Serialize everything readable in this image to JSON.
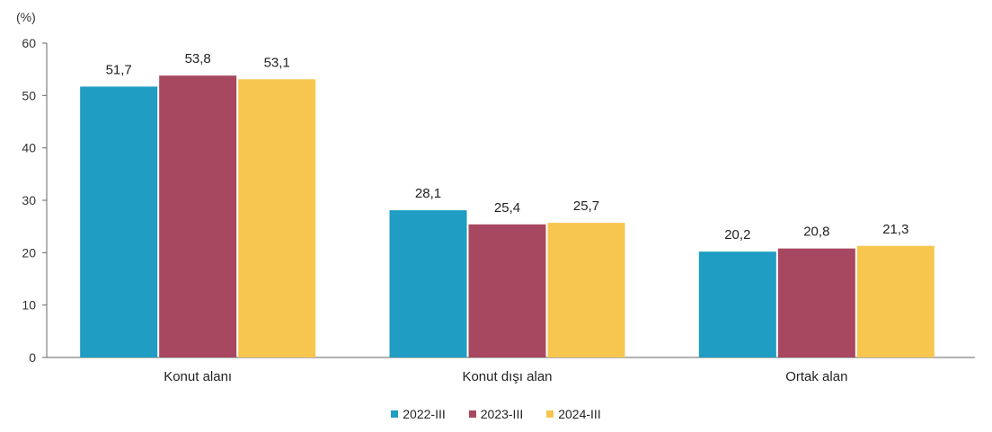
{
  "chart_data": {
    "type": "bar",
    "unit_label": "(%)",
    "categories": [
      "Konut alanı",
      "Konut dışı alan",
      "Ortak alan"
    ],
    "series": [
      {
        "name": "2022-III",
        "color": "#1f9dc2",
        "values": [
          51.7,
          28.1,
          20.2
        ],
        "labels": [
          "51,7",
          "28,1",
          "20,2"
        ]
      },
      {
        "name": "2023-III",
        "color": "#a84860",
        "values": [
          53.8,
          25.4,
          20.8
        ],
        "labels": [
          "53,8",
          "25,4",
          "20,8"
        ]
      },
      {
        "name": "2024-III",
        "color": "#f6c64f",
        "values": [
          53.1,
          25.7,
          21.3
        ],
        "labels": [
          "53,1",
          "25,7",
          "21,3"
        ]
      }
    ],
    "ylim": [
      0,
      60
    ],
    "yticks": [
      "0",
      "10",
      "20",
      "30",
      "40",
      "50",
      "60"
    ],
    "grid": false,
    "legend_position": "bottom"
  }
}
